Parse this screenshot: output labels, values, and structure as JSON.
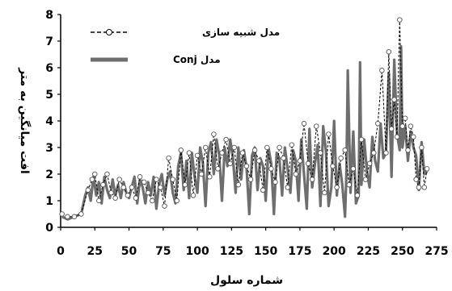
{
  "chart_data": {
    "type": "line",
    "xlabel": "شماره سلول",
    "ylabel": "افت میانگین به متر",
    "xlim": [
      0,
      275
    ],
    "ylim": [
      0,
      8
    ],
    "x_ticks": [
      "0",
      "25",
      "50",
      "75",
      "100",
      "125",
      "150",
      "175",
      "200",
      "225",
      "250",
      "275"
    ],
    "y_ticks": [
      "0",
      "1",
      "2",
      "3",
      "4",
      "5",
      "6",
      "7",
      "8"
    ],
    "grid": false,
    "legend_position": "top-left",
    "series": [
      {
        "name": "مدل شبیه سازی",
        "style": "dashed-circles",
        "color": "#000000",
        "marker_fill": "#ffffff",
        "x": [
          1,
          5,
          10,
          15,
          20,
          23,
          25,
          28,
          31,
          34,
          37,
          40,
          43,
          46,
          49,
          52,
          55,
          58,
          61,
          64,
          67,
          70,
          73,
          76,
          79,
          82,
          85,
          88,
          91,
          94,
          97,
          100,
          103,
          106,
          109,
          112,
          115,
          118,
          121,
          124,
          127,
          130,
          133,
          136,
          139,
          142,
          145,
          148,
          151,
          154,
          157,
          160,
          163,
          166,
          169,
          172,
          175,
          178,
          181,
          184,
          187,
          190,
          193,
          196,
          199,
          202,
          205,
          208,
          211,
          214,
          217,
          220,
          223,
          226,
          229,
          232,
          235,
          238,
          240,
          242,
          244,
          246,
          248,
          250,
          252,
          254,
          256,
          258,
          260,
          262,
          264,
          266,
          268
        ],
        "y": [
          0.5,
          0.4,
          0.4,
          0.5,
          1.4,
          1.8,
          2.0,
          1.0,
          1.6,
          2.0,
          1.3,
          1.1,
          1.8,
          1.5,
          1.2,
          1.5,
          1.1,
          1.9,
          1.7,
          1.3,
          1.0,
          1.8,
          1.5,
          0.8,
          2.6,
          1.8,
          1.0,
          2.9,
          1.6,
          2.8,
          1.2,
          2.7,
          2.0,
          3.0,
          1.9,
          3.5,
          2.2,
          2.8,
          3.3,
          2.4,
          3.0,
          1.6,
          2.8,
          2.3,
          1.8,
          2.9,
          2.5,
          1.4,
          3.0,
          2.2,
          1.7,
          3.0,
          2.6,
          1.5,
          3.1,
          2.0,
          2.5,
          3.9,
          2.4,
          1.8,
          3.8,
          2.8,
          1.3,
          3.5,
          2.3,
          1.5,
          2.6,
          2.9,
          1.6,
          2.2,
          1.2,
          3.3,
          1.8,
          2.4,
          2.8,
          3.9,
          5.9,
          2.8,
          6.6,
          3.7,
          4.8,
          3.4,
          7.8,
          3.8,
          4.1,
          2.9,
          3.8,
          3.4,
          1.8,
          1.5,
          3.0,
          1.5,
          2.2
        ]
      },
      {
        "name": "مدل Conj",
        "style": "solid",
        "color": "#6e6e6e",
        "x": [
          1,
          5,
          10,
          15,
          18,
          20,
          22,
          24,
          26,
          28,
          30,
          32,
          34,
          36,
          38,
          40,
          42,
          44,
          46,
          48,
          50,
          52,
          54,
          56,
          58,
          60,
          62,
          64,
          66,
          68,
          70,
          72,
          74,
          76,
          78,
          80,
          82,
          84,
          86,
          88,
          90,
          92,
          94,
          96,
          98,
          100,
          102,
          104,
          106,
          108,
          110,
          112,
          114,
          116,
          118,
          120,
          122,
          124,
          126,
          128,
          130,
          132,
          134,
          136,
          138,
          140,
          142,
          144,
          146,
          148,
          150,
          152,
          154,
          156,
          158,
          160,
          162,
          164,
          166,
          168,
          170,
          172,
          174,
          176,
          178,
          180,
          182,
          184,
          186,
          188,
          190,
          192,
          194,
          196,
          198,
          200,
          202,
          204,
          206,
          208,
          209,
          210,
          212,
          214,
          216,
          218,
          219,
          220,
          222,
          224,
          226,
          228,
          230,
          232,
          234,
          236,
          238,
          240,
          242,
          244,
          246,
          248,
          249,
          250,
          252,
          254,
          256,
          258,
          260,
          262,
          264,
          266,
          268
        ],
        "y": [
          0.4,
          0.3,
          0.4,
          0.5,
          1.2,
          1.5,
          1.0,
          1.9,
          1.2,
          1.7,
          0.9,
          1.9,
          1.4,
          1.1,
          1.8,
          1.2,
          1.6,
          1.1,
          1.7,
          1.3,
          1.1,
          1.5,
          1.9,
          0.9,
          1.8,
          1.5,
          0.9,
          1.7,
          1.2,
          1.9,
          0.7,
          1.6,
          2.0,
          1.2,
          1.8,
          2.1,
          1.3,
          0.9,
          2.3,
          2.8,
          1.4,
          2.5,
          1.1,
          2.8,
          1.9,
          1.3,
          3.0,
          2.4,
          0.8,
          2.8,
          3.2,
          2.0,
          3.3,
          2.7,
          1.0,
          3.0,
          2.3,
          3.3,
          2.6,
          1.3,
          3.0,
          1.8,
          2.9,
          2.2,
          0.5,
          2.7,
          3.0,
          1.4,
          2.6,
          2.3,
          1.0,
          3.0,
          2.4,
          0.5,
          2.8,
          2.6,
          1.2,
          3.0,
          2.2,
          1.3,
          2.9,
          2.5,
          1.0,
          3.3,
          2.0,
          0.7,
          3.7,
          1.5,
          2.4,
          3.1,
          0.8,
          3.8,
          2.9,
          0.8,
          1.5,
          4.0,
          1.2,
          2.4,
          1.6,
          0.4,
          2.0,
          5.9,
          1.3,
          3.6,
          0.9,
          1.2,
          6.2,
          1.6,
          3.3,
          2.1,
          1.5,
          3.4,
          2.5,
          2.1,
          3.9,
          2.6,
          2.8,
          5.8,
          1.9,
          6.3,
          3.5,
          2.9,
          6.8,
          3.0,
          3.8,
          2.5,
          3.6,
          3.0,
          2.7,
          1.4,
          3.2,
          2.0,
          2.1
        ]
      }
    ]
  }
}
